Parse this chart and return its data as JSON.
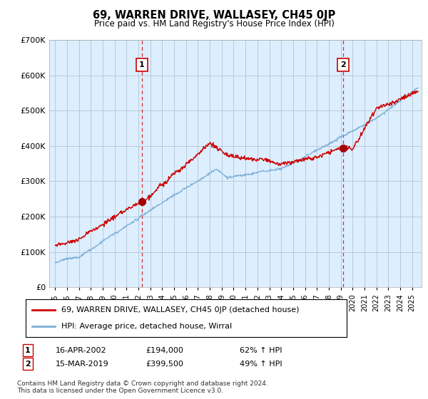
{
  "title": "69, WARREN DRIVE, WALLASEY, CH45 0JP",
  "subtitle": "Price paid vs. HM Land Registry's House Price Index (HPI)",
  "hpi_line_color": "#7aaed6",
  "price_line_color": "#cc0000",
  "vline_color": "#cc0000",
  "chart_bg_color": "#ddeeff",
  "background_color": "#ffffff",
  "grid_color": "#aabbcc",
  "ylim": [
    0,
    700000
  ],
  "yticks": [
    0,
    100000,
    200000,
    300000,
    400000,
    500000,
    600000,
    700000
  ],
  "sale1": {
    "date_num": 2002.29,
    "price": 194000,
    "label": "1",
    "text": "16-APR-2002",
    "price_str": "£194,000",
    "hpi_str": "62% ↑ HPI"
  },
  "sale2": {
    "date_num": 2019.21,
    "price": 399500,
    "label": "2",
    "text": "15-MAR-2019",
    "price_str": "£399,500",
    "hpi_str": "49% ↑ HPI"
  },
  "legend_line1": "69, WARREN DRIVE, WALLASEY, CH45 0JP (detached house)",
  "legend_line2": "HPI: Average price, detached house, Wirral",
  "footer": "Contains HM Land Registry data © Crown copyright and database right 2024.\nThis data is licensed under the Open Government Licence v3.0.",
  "xmin": 1994.5,
  "xmax": 2025.8
}
